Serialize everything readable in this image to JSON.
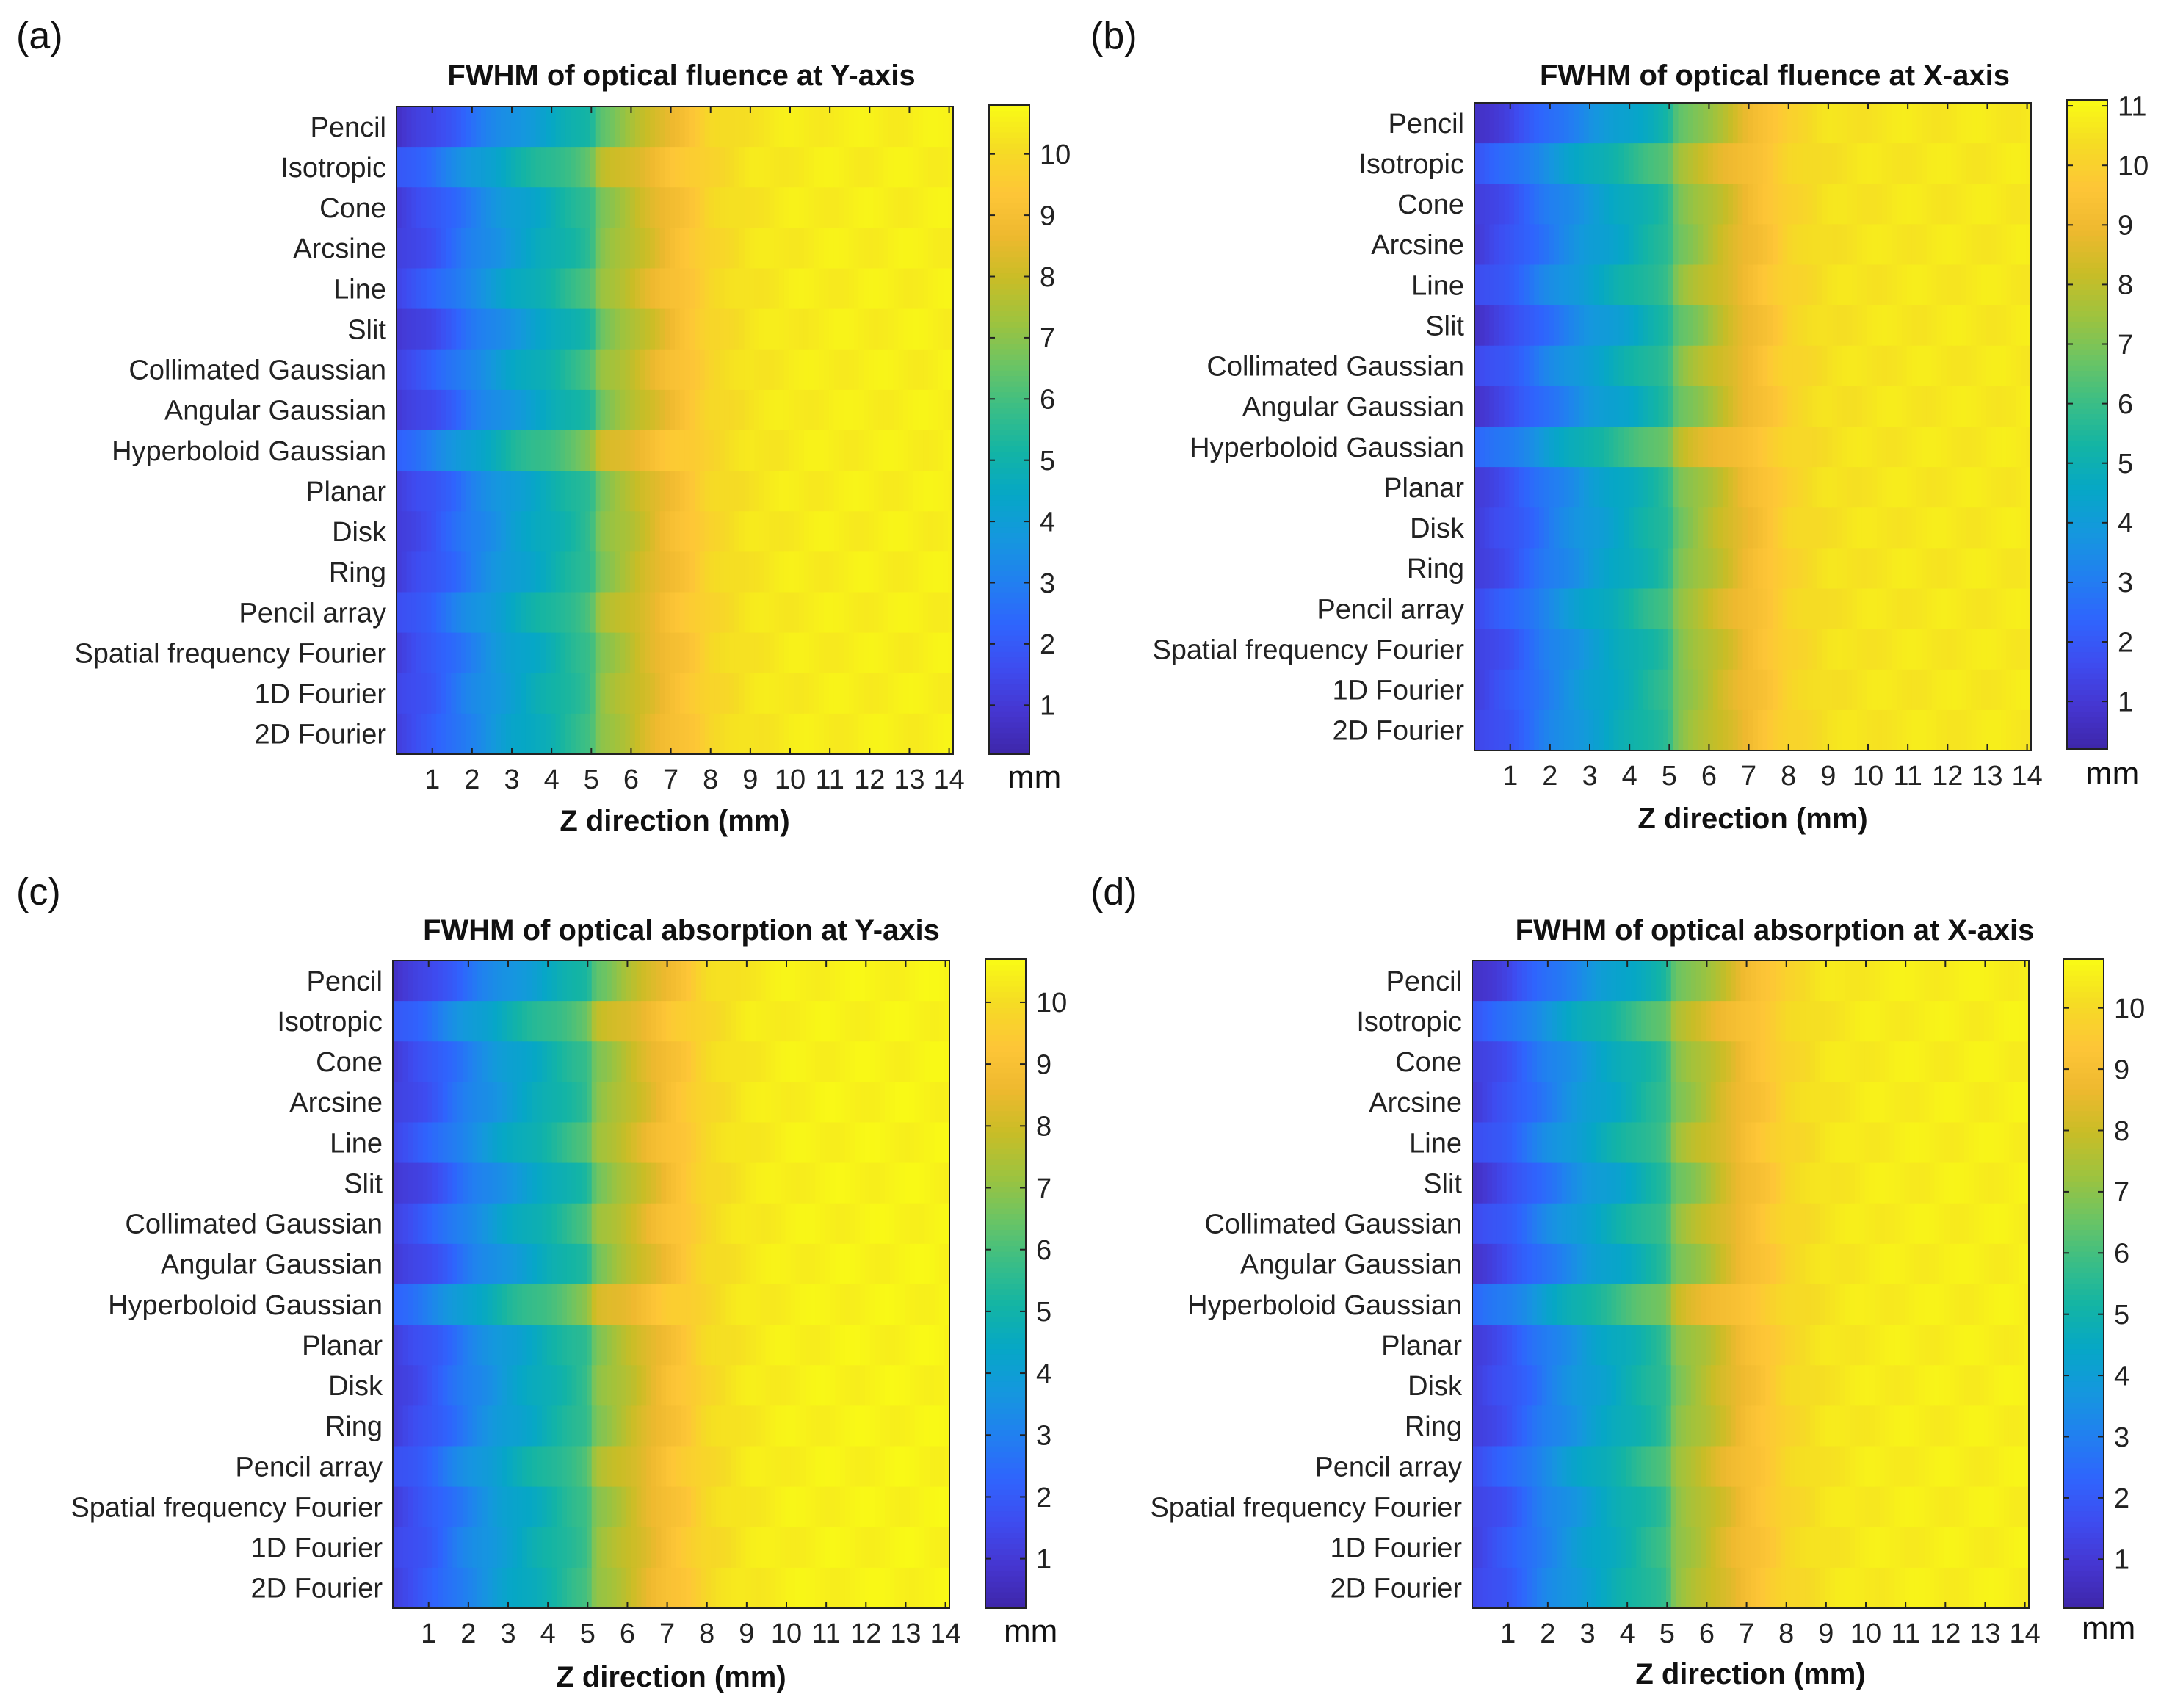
{
  "figure": {
    "panels": [
      "(a)",
      "(b)",
      "(c)",
      "(d)"
    ],
    "unit_label": "mm"
  },
  "colormap": [
    "#3e26a8",
    "#4536d0",
    "#3e4cf0",
    "#2f64fd",
    "#2180f0",
    "#1597de",
    "#06a7c6",
    "#13b4a5",
    "#3abe86",
    "#6bc464",
    "#9ec33e",
    "#c9bd26",
    "#eeb92f",
    "#fec637",
    "#f5dc24",
    "#f9fb15"
  ],
  "chart_data": [
    {
      "type": "heatmap",
      "label": "(a)",
      "title": "FWHM of optical fluence at Y-axis",
      "xlabel": "Z direction (mm)",
      "ylabel": "",
      "rows": [
        "Pencil",
        "Isotropic",
        "Cone",
        "Arcsine",
        "Line",
        "Slit",
        "Collimated Gaussian",
        "Angular Gaussian",
        "Hyperboloid Gaussian",
        "Planar",
        "Disk",
        "Ring",
        "Pencil array",
        "Spatial frequency Fourier",
        "1D Fourier",
        "2D Fourier"
      ],
      "x_ticks": [
        1,
        2,
        3,
        4,
        5,
        6,
        7,
        8,
        9,
        10,
        11,
        12,
        13,
        14
      ],
      "xlim": [
        0.1,
        14.1
      ],
      "clim": [
        0.2,
        10.8
      ],
      "colorbar_ticks": [
        1,
        2,
        3,
        4,
        5,
        6,
        7,
        8,
        9,
        10
      ],
      "colorbar_unit": "mm",
      "row_offsets": [
        -0.6,
        0.6,
        -0.2,
        -0.2,
        0.2,
        -0.5,
        0.1,
        -0.4,
        1.0,
        -0.2,
        -0.2,
        -0.2,
        0.3,
        -0.1,
        0.0,
        0.0
      ],
      "fwhm_model": "value = lerp((z, mm) -> (fwhm, mm) curve) + row_offset, fading after z=6",
      "fwhm_curve": [
        [
          0.1,
          1.3
        ],
        [
          1,
          2.0
        ],
        [
          2,
          3.2
        ],
        [
          3,
          4.2
        ],
        [
          4,
          5.0
        ],
        [
          5,
          5.9
        ],
        [
          5.2,
          7.0
        ],
        [
          6,
          7.8
        ],
        [
          7,
          9.0
        ],
        [
          7.5,
          9.4
        ],
        [
          8,
          9.9
        ],
        [
          9,
          10.3
        ],
        [
          10,
          10.45
        ],
        [
          11,
          10.5
        ],
        [
          14.1,
          10.55
        ]
      ]
    },
    {
      "type": "heatmap",
      "label": "(b)",
      "title": "FWHM of optical fluence at X-axis",
      "xlabel": "Z direction (mm)",
      "ylabel": "",
      "rows": [
        "Pencil",
        "Isotropic",
        "Cone",
        "Arcsine",
        "Line",
        "Slit",
        "Collimated Gaussian",
        "Angular Gaussian",
        "Hyperboloid Gaussian",
        "Planar",
        "Disk",
        "Ring",
        "Pencil array",
        "Spatial frequency Fourier",
        "1D Fourier",
        "2D Fourier"
      ],
      "x_ticks": [
        1,
        2,
        3,
        4,
        5,
        6,
        7,
        8,
        9,
        10,
        11,
        12,
        13,
        14
      ],
      "xlim": [
        0.1,
        14.1
      ],
      "clim": [
        0.2,
        11.1
      ],
      "colorbar_ticks": [
        1,
        2,
        3,
        4,
        5,
        6,
        7,
        8,
        9,
        10,
        11
      ],
      "colorbar_unit": "mm",
      "row_offsets": [
        -0.6,
        0.6,
        -0.2,
        -0.2,
        0.2,
        -0.5,
        0.1,
        -0.4,
        1.0,
        -0.2,
        -0.2,
        -0.2,
        0.3,
        -0.1,
        0.0,
        0.0
      ],
      "fwhm_model": "value = lerp((z, mm) -> (fwhm, mm) curve) + row_offset, fading after z=6",
      "fwhm_curve": [
        [
          0.1,
          1.3
        ],
        [
          1,
          2.0
        ],
        [
          2,
          3.2
        ],
        [
          3,
          4.2
        ],
        [
          4,
          5.0
        ],
        [
          5,
          5.9
        ],
        [
          5.2,
          7.0
        ],
        [
          6,
          7.9
        ],
        [
          7,
          9.1
        ],
        [
          7.5,
          9.6
        ],
        [
          8,
          10.1
        ],
        [
          9,
          10.5
        ],
        [
          10,
          10.6
        ],
        [
          11,
          10.65
        ],
        [
          14.1,
          10.7
        ]
      ]
    },
    {
      "type": "heatmap",
      "label": "(c)",
      "title": "FWHM of optical absorption at Y-axis",
      "xlabel": "Z direction (mm)",
      "ylabel": "",
      "rows": [
        "Pencil",
        "Isotropic",
        "Cone",
        "Arcsine",
        "Line",
        "Slit",
        "Collimated Gaussian",
        "Angular Gaussian",
        "Hyperboloid Gaussian",
        "Planar",
        "Disk",
        "Ring",
        "Pencil array",
        "Spatial frequency Fourier",
        "1D Fourier",
        "2D Fourier"
      ],
      "x_ticks": [
        1,
        2,
        3,
        4,
        5,
        6,
        7,
        8,
        9,
        10,
        11,
        12,
        13,
        14
      ],
      "xlim": [
        0.1,
        14.1
      ],
      "clim": [
        0.2,
        10.7
      ],
      "colorbar_ticks": [
        1,
        2,
        3,
        4,
        5,
        6,
        7,
        8,
        9,
        10
      ],
      "colorbar_unit": "mm",
      "row_offsets": [
        -0.6,
        0.6,
        -0.2,
        -0.2,
        0.2,
        -0.5,
        0.1,
        -0.4,
        1.0,
        -0.2,
        -0.2,
        -0.2,
        0.3,
        -0.1,
        0.0,
        0.0
      ],
      "fwhm_model": "value = lerp((z, mm) -> (fwhm, mm) curve) + row_offset, fading after z=6",
      "fwhm_curve": [
        [
          0.1,
          1.3
        ],
        [
          1,
          2.0
        ],
        [
          2,
          3.2
        ],
        [
          3,
          4.2
        ],
        [
          4,
          5.0
        ],
        [
          5,
          5.9
        ],
        [
          5.2,
          7.0
        ],
        [
          6,
          7.8
        ],
        [
          7,
          9.0
        ],
        [
          7.5,
          9.4
        ],
        [
          8,
          9.9
        ],
        [
          9,
          10.3
        ],
        [
          10,
          10.45
        ],
        [
          11,
          10.5
        ],
        [
          14.1,
          10.55
        ]
      ]
    },
    {
      "type": "heatmap",
      "label": "(d)",
      "title": "FWHM of optical absorption at X-axis",
      "xlabel": "Z direction (mm)",
      "ylabel": "",
      "rows": [
        "Pencil",
        "Isotropic",
        "Cone",
        "Arcsine",
        "Line",
        "Slit",
        "Collimated Gaussian",
        "Angular Gaussian",
        "Hyperboloid Gaussian",
        "Planar",
        "Disk",
        "Ring",
        "Pencil array",
        "Spatial frequency Fourier",
        "1D Fourier",
        "2D Fourier"
      ],
      "x_ticks": [
        1,
        2,
        3,
        4,
        5,
        6,
        7,
        8,
        9,
        10,
        11,
        12,
        13,
        14
      ],
      "xlim": [
        0.1,
        14.1
      ],
      "clim": [
        0.2,
        10.8
      ],
      "colorbar_ticks": [
        1,
        2,
        3,
        4,
        5,
        6,
        7,
        8,
        9,
        10
      ],
      "colorbar_unit": "mm",
      "row_offsets": [
        -0.6,
        0.6,
        -0.2,
        -0.2,
        0.2,
        -0.5,
        0.1,
        -0.4,
        1.0,
        -0.2,
        -0.2,
        -0.2,
        0.3,
        -0.1,
        0.0,
        0.0
      ],
      "fwhm_model": "value = lerp((z, mm) -> (fwhm, mm) curve) + row_offset, fading after z=6",
      "fwhm_curve": [
        [
          0.1,
          1.3
        ],
        [
          1,
          2.0
        ],
        [
          2,
          3.2
        ],
        [
          3,
          4.2
        ],
        [
          4,
          5.0
        ],
        [
          5,
          5.9
        ],
        [
          5.2,
          7.0
        ],
        [
          6,
          7.8
        ],
        [
          7,
          9.0
        ],
        [
          7.5,
          9.4
        ],
        [
          8,
          9.9
        ],
        [
          9,
          10.3
        ],
        [
          10,
          10.45
        ],
        [
          11,
          10.5
        ],
        [
          14.1,
          10.55
        ]
      ]
    }
  ]
}
